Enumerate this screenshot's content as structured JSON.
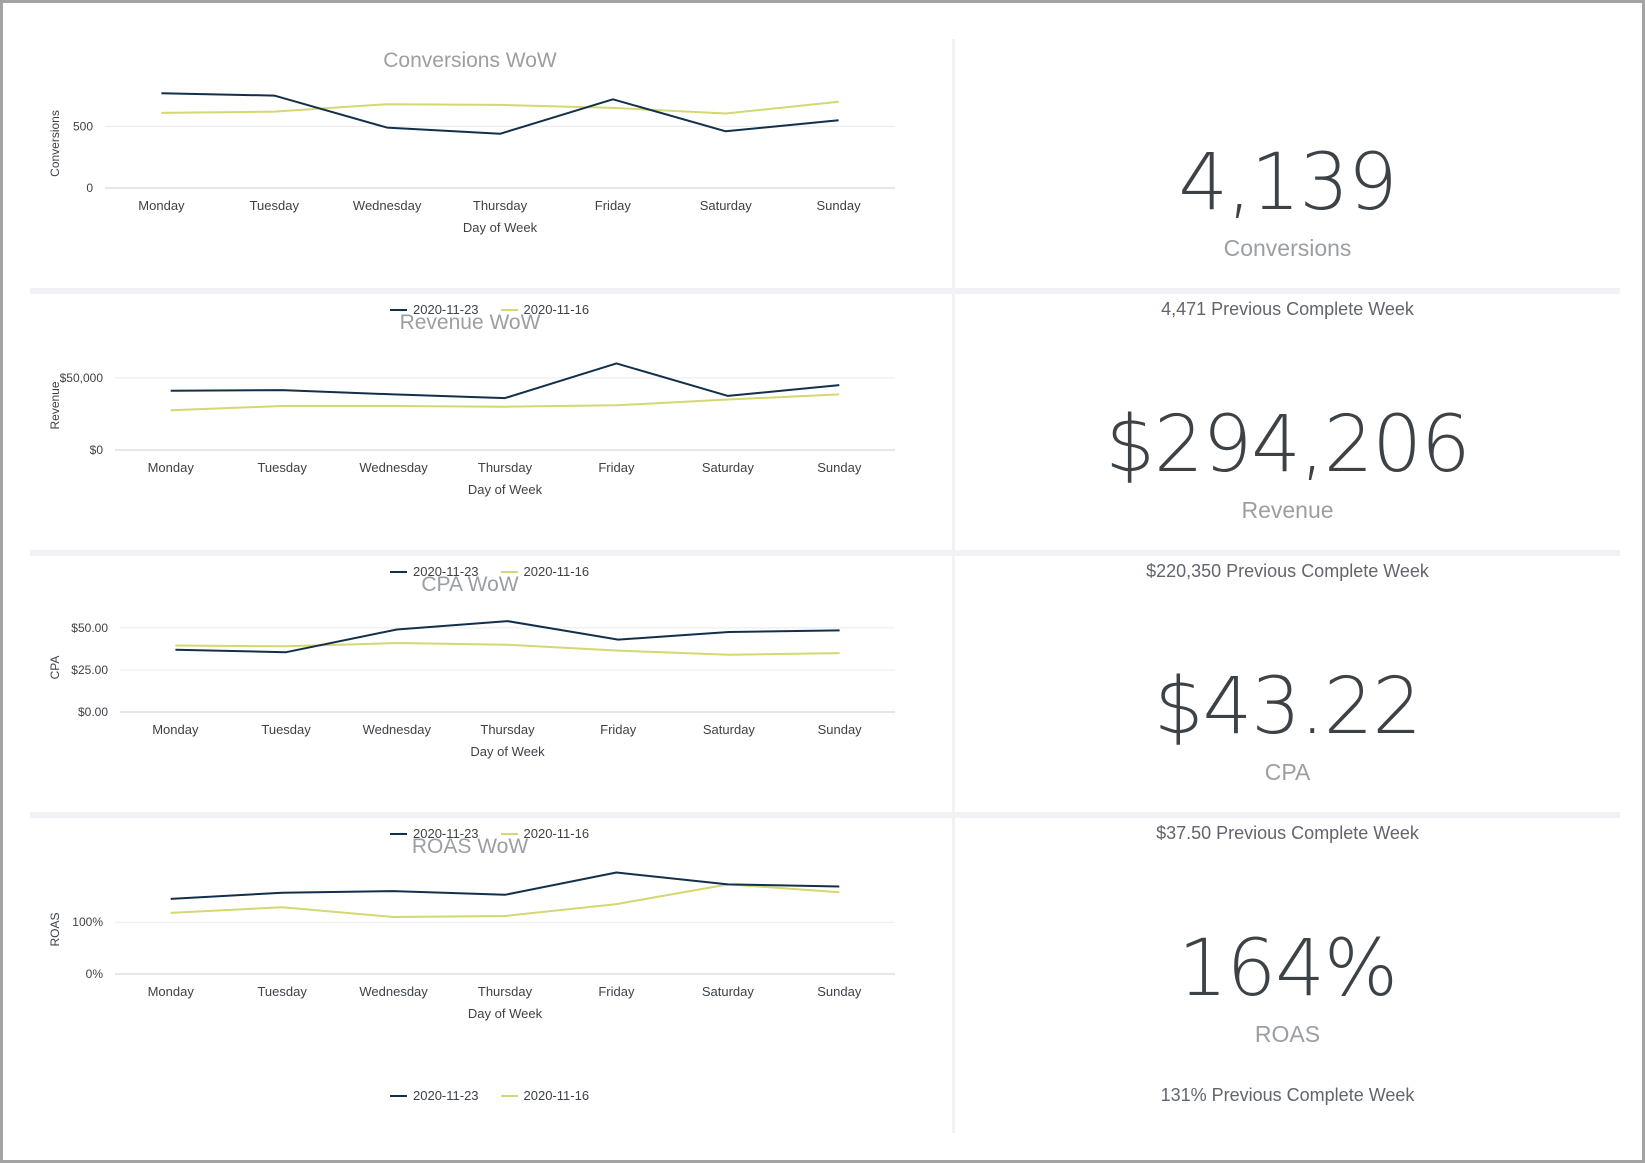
{
  "colors": {
    "current": "#13304a",
    "previous": "#d3d872",
    "grid": "#e8eaec",
    "axis": "#c9cdd1"
  },
  "legend": {
    "current": "2020-11-23",
    "previous": "2020-11-16"
  },
  "kpis": [
    {
      "value": "4,139",
      "label": "Conversions",
      "compare": "4,471 Previous Complete Week"
    },
    {
      "value": "$294,206",
      "label": "Revenue",
      "compare": "$220,350 Previous Complete Week"
    },
    {
      "value": "$43.22",
      "label": "CPA",
      "compare": "$37.50 Previous Complete Week"
    },
    {
      "value": "164%",
      "label": "ROAS",
      "compare": "131% Previous Complete Week"
    }
  ],
  "chart_data": [
    {
      "type": "line",
      "title": "Conversions WoW",
      "xlabel": "Day of Week",
      "ylabel": "Conversions",
      "categories": [
        "Monday",
        "Tuesday",
        "Wednesday",
        "Thursday",
        "Friday",
        "Saturday",
        "Sunday"
      ],
      "yticks": [
        0,
        500
      ],
      "ytick_labels": [
        "0",
        "500"
      ],
      "ylim": [
        0,
        820
      ],
      "series": [
        {
          "name": "2020-11-23",
          "values": [
            770,
            750,
            490,
            440,
            720,
            460,
            550
          ]
        },
        {
          "name": "2020-11-16",
          "values": [
            610,
            620,
            680,
            675,
            650,
            605,
            700
          ]
        }
      ]
    },
    {
      "type": "line",
      "title": "Revenue WoW",
      "xlabel": "Day of Week",
      "ylabel": "Revenue",
      "categories": [
        "Monday",
        "Tuesday",
        "Wednesday",
        "Thursday",
        "Friday",
        "Saturday",
        "Sunday"
      ],
      "yticks": [
        0,
        50000
      ],
      "ytick_labels": [
        "$0",
        "$50,000"
      ],
      "ylim": [
        0,
        70000
      ],
      "series": [
        {
          "name": "2020-11-23",
          "values": [
            41000,
            41500,
            38500,
            36000,
            60000,
            37500,
            45000
          ]
        },
        {
          "name": "2020-11-16",
          "values": [
            27500,
            30500,
            30500,
            30000,
            31000,
            35000,
            38500
          ]
        }
      ]
    },
    {
      "type": "line",
      "title": "CPA WoW",
      "xlabel": "Day of Week",
      "ylabel": "CPA",
      "categories": [
        "Monday",
        "Tuesday",
        "Wednesday",
        "Thursday",
        "Friday",
        "Saturday",
        "Sunday"
      ],
      "yticks": [
        0,
        25,
        50
      ],
      "ytick_labels": [
        "$0.00",
        "$25.00",
        "$50.00"
      ],
      "ylim": [
        0,
        60
      ],
      "series": [
        {
          "name": "2020-11-23",
          "values": [
            37,
            35.5,
            49,
            54,
            43,
            47.5,
            48.5
          ]
        },
        {
          "name": "2020-11-16",
          "values": [
            39.5,
            39,
            41,
            40,
            36.5,
            34,
            35
          ]
        }
      ]
    },
    {
      "type": "line",
      "title": "ROAS WoW",
      "xlabel": "Day of Week",
      "ylabel": "ROAS",
      "categories": [
        "Monday",
        "Tuesday",
        "Wednesday",
        "Thursday",
        "Friday",
        "Saturday",
        "Sunday"
      ],
      "yticks": [
        0,
        100
      ],
      "ytick_labels": [
        "0%",
        "100%"
      ],
      "ylim": [
        0,
        195
      ],
      "series": [
        {
          "name": "2020-11-23",
          "values": [
            145,
            157,
            160,
            153,
            196,
            173,
            169
          ]
        },
        {
          "name": "2020-11-16",
          "values": [
            118,
            129,
            110,
            112,
            135,
            173,
            158
          ]
        }
      ]
    }
  ]
}
